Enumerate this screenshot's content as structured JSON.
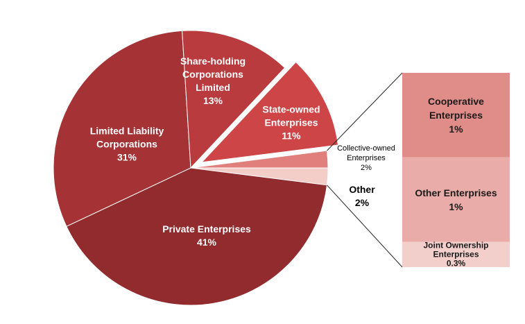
{
  "chart_data": [
    {
      "type": "pie",
      "categories": [
        "Other",
        "Private Enterprises",
        "Limited Liability Corporations",
        "Share-holding Corporations Limited",
        "State-owned Enterprises",
        "Collective-owned Enterprises"
      ],
      "values": [
        2,
        41,
        31,
        13,
        11,
        2
      ],
      "value_labels": [
        "2%",
        "41%",
        "31%",
        "13%",
        "11%",
        "2%"
      ],
      "colors": [
        "#f3cdc8",
        "#912b2e",
        "#a53336",
        "#b93b3e",
        "#cd4547",
        "#e07f7b"
      ],
      "exploded": "State-owned Enterprises"
    },
    {
      "type": "stacked-bar",
      "categories": [
        "Cooperative Enterprises",
        "Other Enterprises",
        "Joint Ownership Enterprises"
      ],
      "values": [
        1,
        1,
        0.3
      ],
      "value_labels": [
        "1%",
        "1%",
        "0.3%"
      ],
      "colors": [
        "#e08c88",
        "#e9aca8",
        "#f3cfcb"
      ]
    }
  ]
}
